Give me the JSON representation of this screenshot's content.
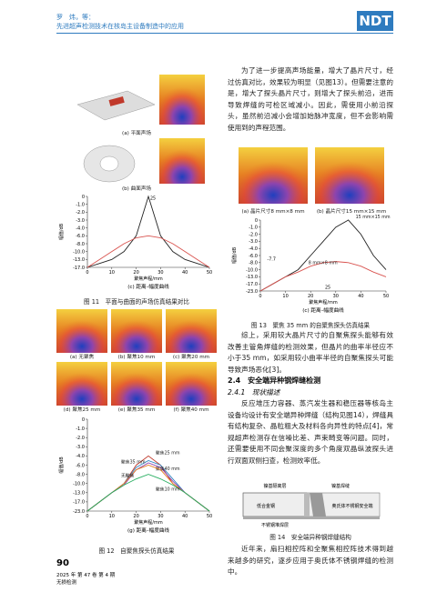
{
  "header": {
    "authors": "罗　炜，等：",
    "title": "先进超声检测技术在核岛主设备制造中的应用",
    "logo": "NDT"
  },
  "left": {
    "fig11": {
      "a": "(a) 平面声场",
      "b": "(b) 曲面声场",
      "caption": "图 11　平面与曲面的声场仿真结果对比"
    },
    "fig12": {
      "a": "(a) 无聚焦",
      "b": "(b) 聚焦10 mm",
      "c": "(c) 聚焦20 mm",
      "d": "(d) 聚焦25 mm",
      "e": "(e) 聚焦35 mm",
      "f": "(f) 聚焦40 mm",
      "caption": "图 12　自聚焦探头仿真结果"
    }
  },
  "right": {
    "p1": "为了进一步提高声场能量，增大了晶片尺寸，经过仿真对比，效果较为明显（见图13）。但需要注意的是，增大了探头晶片尺寸，则增大了探头前沿，进而导致焊缝的可检区域减小。因此，需使用小前沿探头，虽然前沿减小会增加始脉冲宽度，但不会影响需使用到的声程范围。",
    "fig13": {
      "a": "(a) 晶片尺寸8 mm×8 mm",
      "b": "(b) 晶片尺寸15 mm×15 mm",
      "caption": "图 13　聚焦 35 mm 的自聚焦探头仿真结果"
    },
    "p2": "综上，采用较大晶片尺寸的自聚焦探头能够有效改善主管角焊缝的检测效果，但晶片的曲率半径应不小于35 mm，如采用较小曲率半径的自聚焦探头可能导致声场恶化[3]。",
    "h1": "2.4　安全端异种钢焊缝检测",
    "h2": "2.4.1　现状描述",
    "p3": "反应堆压力容器、蒸汽发生器和稳压器等核岛主设备均设计有安全端异种焊缝（结构见图14），焊缝具有结构复杂、晶粒粗大及材料各向异性的特点[4]，常规超声检测存在信噪比差、声束畸变等问题。同时，还需要使用不同会聚深度的多个角度双晶纵波探头进行双面双侧扫查，检测效率低。",
    "fig14": {
      "labels": [
        "镍基隔离层",
        "镍基焊缝",
        "低合金钢",
        "奥氏体不锈钢安全端",
        "不锈钢堆焊层"
      ],
      "caption": "图 14　安全端异种钢焊缝结构"
    },
    "p4": "近年来，扇扫相控阵和全聚焦相控阵技术得到越来越多的研究，逐步应用于奥氏体不锈钢焊缝的检测中。"
  },
  "footer": {
    "page": "90",
    "issue": "2025 年 第 47 卷 第 4 期",
    "journal": "无损检测"
  },
  "charts": [
    {
      "type": "line",
      "subtitle": "(c) 距离–幅度曲线",
      "ylabel": "幅值/dB",
      "xlabel": "聚焦声程/mm",
      "x": [
        0,
        5,
        10,
        15,
        20,
        25,
        30,
        35,
        40,
        45,
        50
      ],
      "xlim": [
        0,
        50
      ],
      "xticks": [
        0,
        10,
        20,
        30,
        40,
        50
      ],
      "yticks": [
        0,
        {
          "value": -1,
          "label": "-1.0"
        },
        {
          "value": -2,
          "label": "-2.0"
        },
        {
          "value": -3,
          "label": "-3.0"
        },
        {
          "value": -4,
          "label": "-4.0"
        },
        {
          "value": -6,
          "label": "-6.0"
        },
        {
          "value": -8,
          "label": "-8.0"
        },
        {
          "value": -10,
          "label": "-10.0"
        },
        {
          "value": -13,
          "label": "-13.0"
        },
        {
          "value": -17,
          "label": "-17.0"
        }
      ],
      "series": [
        {
          "color": "#222222",
          "values": [
            -17,
            -15,
            -13,
            -10,
            -6,
            0,
            -6,
            -10,
            -13,
            -15,
            -17
          ]
        },
        {
          "color": "#d9534f",
          "values": [
            -17,
            -13,
            -10,
            -8,
            -6.5,
            -6,
            -6.5,
            -8,
            -10,
            -13,
            -17
          ]
        }
      ],
      "annotations": [
        {
          "text": "25",
          "x": 25,
          "y": -0.5
        }
      ]
    },
    {
      "type": "line",
      "subtitle": "(g) 距离–幅度曲线",
      "ylabel": "幅值/dB",
      "xlabel": "聚焦声程/mm",
      "x": [
        0,
        5,
        10,
        15,
        20,
        25,
        30,
        35,
        40,
        45,
        50
      ],
      "xlim": [
        0,
        50
      ],
      "xticks": [
        0,
        10,
        20,
        30,
        40,
        50
      ],
      "yticks": [
        0,
        {
          "value": -1,
          "label": "-1.0"
        },
        {
          "value": -2,
          "label": "-2.0"
        },
        {
          "value": -3,
          "label": "-3.0"
        },
        {
          "value": -4,
          "label": "-4.0"
        },
        {
          "value": -6,
          "label": "-6.0"
        },
        {
          "value": -8,
          "label": "-8.0"
        },
        {
          "value": -10,
          "label": "-10.0"
        },
        {
          "value": -13,
          "label": "-13.0"
        },
        {
          "value": -17,
          "label": "-17.0"
        },
        {
          "value": -23,
          "label": "-23.0"
        }
      ],
      "series": [
        {
          "name": "聚焦25 mm",
          "color": "#c0392b",
          "values": [
            -23,
            -17,
            -13,
            -10,
            -6,
            -4,
            -6,
            -10,
            -13,
            -17,
            -23
          ]
        },
        {
          "name": "聚焦35 mm",
          "color": "#2e86c1",
          "values": [
            -23,
            -17,
            -13,
            -10,
            -6.5,
            -5,
            -6,
            -9,
            -13,
            -17,
            -23
          ]
        },
        {
          "name": "聚焦40 mm",
          "color": "#8e44ad",
          "values": [
            -23,
            -17,
            -13,
            -10.5,
            -7,
            -5.5,
            -6.5,
            -9.5,
            -13,
            -17,
            -23
          ]
        },
        {
          "name": "无聚焦",
          "color": "#e67e22",
          "values": [
            -23,
            -17,
            -13,
            -10,
            -7,
            -6,
            -7,
            -10,
            -13,
            -17,
            -23
          ]
        },
        {
          "name": "聚焦10 mm",
          "color": "#27ae60",
          "values": [
            -23,
            -17,
            -13,
            -10.5,
            -9,
            -8,
            -9,
            -10.5,
            -13,
            -17,
            -23
          ]
        }
      ]
    },
    {
      "type": "line",
      "subtitle": "(c) 距离–幅度曲线",
      "ylabel": "幅值/dB",
      "xlabel": "聚焦声程/mm",
      "x": [
        0,
        5,
        10,
        15,
        20,
        25,
        30,
        35,
        40,
        45,
        50
      ],
      "xlim": [
        0,
        50
      ],
      "xticks": [
        0,
        10,
        20,
        30,
        40,
        50
      ],
      "yticks": [
        0,
        {
          "value": -1,
          "label": "-1.0"
        },
        {
          "value": -2,
          "label": "-2.0"
        },
        {
          "value": -3,
          "label": "-3.0"
        },
        {
          "value": -4,
          "label": "-4.0"
        },
        {
          "value": -6,
          "label": "-6.0"
        },
        {
          "value": -8,
          "label": "-8.0"
        },
        {
          "value": -10,
          "label": "-10.0"
        },
        {
          "value": -13,
          "label": "-13.0"
        },
        {
          "value": -17,
          "label": "-17.0"
        },
        {
          "value": -23,
          "label": "-23.0"
        }
      ],
      "series": [
        {
          "name": "15 mm×15 mm",
          "color": "#222222",
          "values": [
            -23,
            -17,
            -13,
            -10,
            -6,
            -3,
            -1,
            0,
            -2,
            -6,
            -10
          ]
        },
        {
          "name": "8 mm×8 mm",
          "color": "#d9534f",
          "values": [
            -23,
            -17,
            -13,
            -11,
            -9,
            -8,
            -7.7,
            -8,
            -9,
            -11,
            -13
          ]
        }
      ],
      "annotations": [
        {
          "text": "-7.7",
          "x": 2,
          "y": -7.7
        },
        {
          "text": "25",
          "x": 25,
          "y": -22
        }
      ]
    }
  ]
}
